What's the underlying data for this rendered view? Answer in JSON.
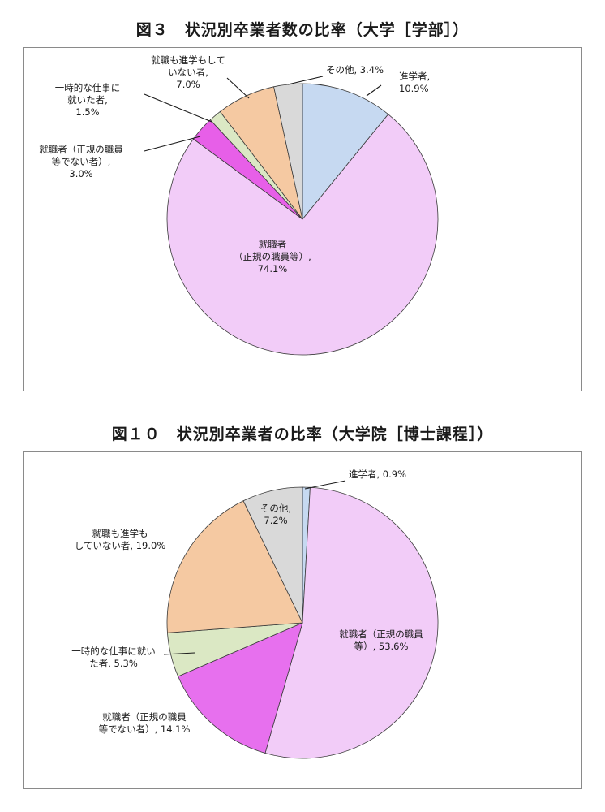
{
  "chart_data": [
    {
      "type": "pie",
      "title": "図３　状況別卒業者数の比率（大学［学部］）",
      "slices": [
        {
          "label": "進学者",
          "value": 10.9,
          "color": "#c6d9f1",
          "text": [
            "進学者,",
            "10.9%"
          ]
        },
        {
          "label": "就職者（正規の職員等）",
          "value": 74.1,
          "color": "#f2ccf8",
          "text": [
            "就職者",
            "（正規の職員等）,",
            "74.1%"
          ]
        },
        {
          "label": "就職者（正規の職員等でない者）",
          "value": 3.0,
          "color": "#e75fe8",
          "text": [
            "就職者（正規の職員",
            "等でない者）,",
            "3.0%"
          ]
        },
        {
          "label": "一時的な仕事に就いた者",
          "value": 1.5,
          "color": "#dbe8c4",
          "text": [
            "一時的な仕事に",
            "就いた者,",
            "1.5%"
          ]
        },
        {
          "label": "就職も進学もしていない者",
          "value": 7.0,
          "color": "#f5c9a2",
          "text": [
            "就職も進学もして",
            "いない者,",
            "7.0%"
          ]
        },
        {
          "label": "その他",
          "value": 3.4,
          "color": "#d9d9d9",
          "text": [
            "その他, 3.4%"
          ]
        }
      ]
    },
    {
      "type": "pie",
      "title": "図１０　状況別卒業者の比率（大学院［博士課程］）",
      "slices": [
        {
          "label": "進学者",
          "value": 0.9,
          "color": "#c6d9f1",
          "text": [
            "進学者, 0.9%"
          ]
        },
        {
          "label": "就職者（正規の職員等）",
          "value": 53.6,
          "color": "#f2ccf8",
          "text": [
            "就職者（正規の職員",
            "等）, 53.6%"
          ]
        },
        {
          "label": "就職者（正規の職員等でない者）",
          "value": 14.1,
          "color": "#e770ee",
          "text": [
            "就職者（正規の職員",
            "等でない者）, 14.1%"
          ]
        },
        {
          "label": "一時的な仕事に就いた者",
          "value": 5.3,
          "color": "#dbe8c4",
          "text": [
            "一時的な仕事に就い",
            "た者, 5.3%"
          ]
        },
        {
          "label": "就職も進学もしていない者",
          "value": 19.0,
          "color": "#f5c9a2",
          "text": [
            "就職も進学も",
            "していない者, 19.0%"
          ]
        },
        {
          "label": "その他",
          "value": 7.2,
          "color": "#d9d9d9",
          "text": [
            "その他,",
            "7.2%"
          ]
        }
      ]
    }
  ]
}
